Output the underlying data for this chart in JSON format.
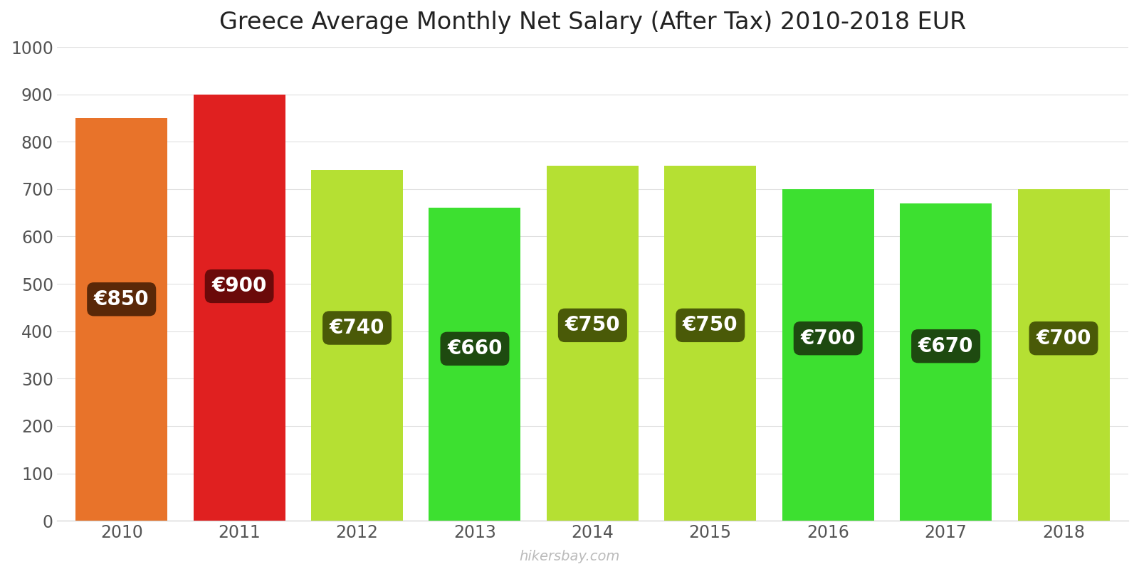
{
  "title": "Greece Average Monthly Net Salary (After Tax) 2010-2018 EUR",
  "years": [
    2010,
    2011,
    2012,
    2013,
    2014,
    2015,
    2016,
    2017,
    2018
  ],
  "values": [
    850,
    900,
    740,
    660,
    750,
    750,
    700,
    670,
    700
  ],
  "bar_colors": [
    "#e8732a",
    "#e02020",
    "#b5e033",
    "#3de030",
    "#b5e033",
    "#b5e033",
    "#3de030",
    "#3de030",
    "#b5e033"
  ],
  "label_bg_colors": [
    "#5a2808",
    "#6b0a0a",
    "#4a5a08",
    "#1e4a10",
    "#4a5a08",
    "#4a5a08",
    "#1e4a10",
    "#1e4a10",
    "#4a5a08"
  ],
  "ylim": [
    0,
    1000
  ],
  "yticks": [
    0,
    100,
    200,
    300,
    400,
    500,
    600,
    700,
    800,
    900,
    1000
  ],
  "label_fontsize": 20,
  "title_fontsize": 24,
  "tick_fontsize": 17,
  "watermark": "hikersbay.com",
  "background_color": "#ffffff",
  "grid_color": "#e0e0e0",
  "bar_width": 0.78
}
